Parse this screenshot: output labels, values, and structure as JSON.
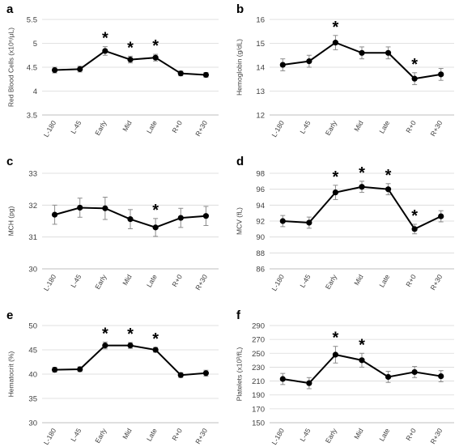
{
  "chart_data": [
    {
      "type": "line",
      "panel_label": "a",
      "categories": [
        "L-180",
        "L-45",
        "Early",
        "Mid",
        "Late",
        "R+0",
        "R+30"
      ],
      "values": [
        4.44,
        4.46,
        4.84,
        4.66,
        4.7,
        4.37,
        4.34
      ],
      "errors": [
        0.06,
        0.06,
        0.09,
        0.07,
        0.07,
        0.05,
        0.05
      ],
      "significant": [
        false,
        false,
        true,
        true,
        true,
        false,
        false
      ],
      "ylabel": "Red Blood Cells (x10⁶/μL)",
      "ylim": [
        3.5,
        5.5
      ],
      "yticks": [
        "3.5",
        "4",
        "4.5",
        "5",
        "5.5"
      ]
    },
    {
      "type": "line",
      "panel_label": "b",
      "categories": [
        "L-180",
        "L-45",
        "Early",
        "Mid",
        "Late",
        "R+0",
        "R+30"
      ],
      "values": [
        14.1,
        14.25,
        15.03,
        14.6,
        14.6,
        13.52,
        13.7
      ],
      "errors": [
        0.25,
        0.25,
        0.3,
        0.25,
        0.25,
        0.25,
        0.25
      ],
      "significant": [
        false,
        false,
        true,
        false,
        false,
        true,
        false
      ],
      "ylabel": "Hemoglobin (g/dL)",
      "ylim": [
        12,
        16
      ],
      "yticks": [
        "12",
        "13",
        "14",
        "15",
        "16"
      ]
    },
    {
      "type": "line",
      "panel_label": "c",
      "categories": [
        "L-180",
        "L-45",
        "Early",
        "Mid",
        "Late",
        "R+0",
        "R+30"
      ],
      "values": [
        31.7,
        31.92,
        31.9,
        31.56,
        31.3,
        31.6,
        31.66
      ],
      "errors": [
        0.3,
        0.3,
        0.35,
        0.3,
        0.28,
        0.3,
        0.3
      ],
      "significant": [
        false,
        false,
        false,
        false,
        true,
        false,
        false
      ],
      "ylabel": "MCH (pg)",
      "ylim": [
        30,
        33
      ],
      "yticks": [
        "30",
        "31",
        "32",
        "33"
      ]
    },
    {
      "type": "line",
      "panel_label": "d",
      "categories": [
        "L-180",
        "L-45",
        "Early",
        "Mid",
        "Late",
        "R+0",
        "R+30"
      ],
      "values": [
        92.0,
        91.8,
        95.6,
        96.3,
        96.0,
        91.0,
        92.6
      ],
      "errors": [
        0.7,
        0.7,
        0.9,
        0.7,
        0.7,
        0.6,
        0.7
      ],
      "significant": [
        false,
        false,
        true,
        true,
        true,
        true,
        false
      ],
      "ylabel": "MCV (fL)",
      "ylim": [
        86,
        98
      ],
      "yticks": [
        "86",
        "88",
        "90",
        "92",
        "94",
        "96",
        "98"
      ]
    },
    {
      "type": "line",
      "panel_label": "e",
      "categories": [
        "L-180",
        "L-45",
        "Early",
        "Mid",
        "Late",
        "R+0",
        "R+30"
      ],
      "values": [
        40.9,
        41.0,
        45.9,
        45.9,
        45.0,
        39.8,
        40.2
      ],
      "errors": [
        0.5,
        0.5,
        0.7,
        0.6,
        0.5,
        0.5,
        0.6
      ],
      "significant": [
        false,
        false,
        true,
        true,
        true,
        false,
        false
      ],
      "ylabel": "Hematocrit (%)",
      "ylim": [
        30,
        50
      ],
      "yticks": [
        "30",
        "35",
        "40",
        "45",
        "50"
      ]
    },
    {
      "type": "line",
      "panel_label": "f",
      "categories": [
        "L-180",
        "L-45",
        "Early",
        "Mid",
        "Late",
        "R+0",
        "R+30"
      ],
      "values": [
        213,
        207,
        248,
        240,
        216,
        223,
        217
      ],
      "errors": [
        8,
        8,
        12,
        10,
        8,
        8,
        8
      ],
      "significant": [
        false,
        false,
        true,
        true,
        false,
        false,
        false
      ],
      "ylabel": "Platelets (x10³/fL)",
      "ylim": [
        150,
        290
      ],
      "yticks": [
        "150",
        "170",
        "190",
        "210",
        "230",
        "250",
        "270",
        "290"
      ]
    }
  ],
  "style": {
    "line_color": "#000000",
    "errorbar_color": "#8c8c8c",
    "gridline_color": "#d9d9d9",
    "axis_color": "#bfbfbf",
    "text_color": "#404040",
    "marker_shape": "circle",
    "significance_marker": "*"
  }
}
